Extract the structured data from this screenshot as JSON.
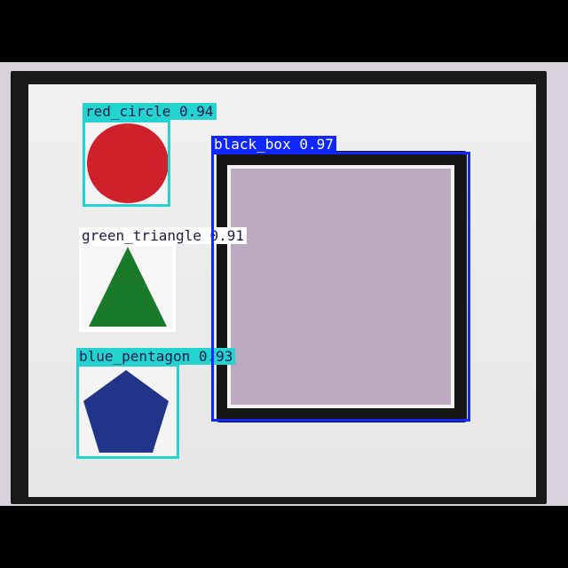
{
  "image": {
    "scene": "photo of a framed mount board with colored shapes",
    "palette": {
      "background": "#000000",
      "board": "#ececec",
      "board_border": "#1a1a1a",
      "window_fill": "#bba9bf",
      "red": "#d0202a",
      "green": "#1a7a2a",
      "blue": "#22348a",
      "box_cyan": "#23d3d0",
      "box_white": "#ffffff",
      "box_blue": "#1028ff"
    }
  },
  "detections": [
    {
      "label": "red_circle 0.94",
      "class": "red_circle",
      "score": "0.94",
      "color_key": "box_cyan",
      "text_color": "#1a1a4a"
    },
    {
      "label": "green_triangle 0.91",
      "class": "green_triangle",
      "score": "0.91",
      "color_key": "box_white",
      "text_color": "#1a1a4a"
    },
    {
      "label": "blue_pentagon 0.93",
      "class": "blue_pentagon",
      "score": "0.93",
      "color_key": "box_cyan",
      "text_color": "#1a1a4a"
    },
    {
      "label": "black_box 0.97",
      "class": "black_box",
      "score": "0.97",
      "color_key": "box_blue",
      "text_color": "#ffffff"
    }
  ]
}
